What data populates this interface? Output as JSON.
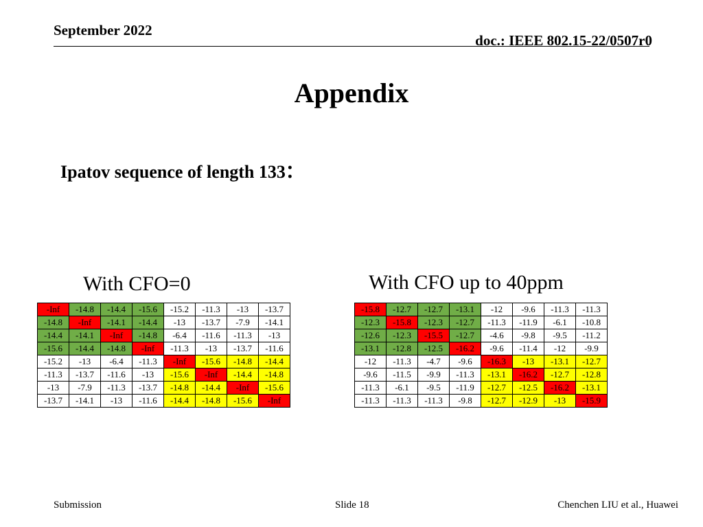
{
  "header": {
    "date": "September 2022",
    "doc": "doc.: IEEE 802.15-22/0507r0"
  },
  "title": "Appendix",
  "subtitle": "Ipatov sequence of length 133：",
  "left_table": {
    "caption": "With CFO=0",
    "rows": [
      [
        "-Inf",
        "-14.8",
        "-14.4",
        "-15.6",
        "-15.2",
        "-11.3",
        "-13",
        "-13.7"
      ],
      [
        "-14.8",
        "-Inf",
        "-14.1",
        "-14.4",
        "-13",
        "-13.7",
        "-7.9",
        "-14.1"
      ],
      [
        "-14.4",
        "-14.1",
        "-Inf",
        "-14.8",
        "-6.4",
        "-11.6",
        "-11.3",
        "-13"
      ],
      [
        "-15.6",
        "-14.4",
        "-14.8",
        "-Inf",
        "-11.3",
        "-13",
        "-13.7",
        "-11.6"
      ],
      [
        "-15.2",
        "-13",
        "-6.4",
        "-11.3",
        "-Inf",
        "-15.6",
        "-14.8",
        "-14.4"
      ],
      [
        "-11.3",
        "-13.7",
        "-11.6",
        "-13",
        "-15.6",
        "-Inf",
        "-14.4",
        "-14.8"
      ],
      [
        "-13",
        "-7.9",
        "-11.3",
        "-13.7",
        "-14.8",
        "-14.4",
        "-Inf",
        "-15.6"
      ],
      [
        "-13.7",
        "-14.1",
        "-13",
        "-11.6",
        "-14.4",
        "-14.8",
        "-15.6",
        "-Inf"
      ]
    ],
    "colors": [
      [
        "r",
        "g",
        "g",
        "g",
        "w",
        "w",
        "w",
        "w"
      ],
      [
        "g",
        "r",
        "g",
        "g",
        "w",
        "w",
        "w",
        "w"
      ],
      [
        "g",
        "g",
        "r",
        "g",
        "w",
        "w",
        "w",
        "w"
      ],
      [
        "g",
        "g",
        "g",
        "r",
        "w",
        "w",
        "w",
        "w"
      ],
      [
        "w",
        "w",
        "w",
        "w",
        "r",
        "y",
        "y",
        "y"
      ],
      [
        "w",
        "w",
        "w",
        "w",
        "y",
        "r",
        "y",
        "y"
      ],
      [
        "w",
        "w",
        "w",
        "w",
        "y",
        "y",
        "r",
        "y"
      ],
      [
        "w",
        "w",
        "w",
        "w",
        "y",
        "y",
        "y",
        "r"
      ]
    ]
  },
  "right_table": {
    "caption": "With CFO up to 40ppm",
    "rows": [
      [
        "-15.8",
        "-12.7",
        "-12.7",
        "-13.1",
        "-12",
        "-9.6",
        "-11.3",
        "-11.3"
      ],
      [
        "-12.3",
        "-15.8",
        "-12.3",
        "-12.7",
        "-11.3",
        "-11.9",
        "-6.1",
        "-10.8"
      ],
      [
        "-12.6",
        "-12.3",
        "-15.5",
        "-12.7",
        "-4.6",
        "-9.8",
        "-9.5",
        "-11.2"
      ],
      [
        "-13.1",
        "-12.8",
        "-12.5",
        "-16.2",
        "-9.6",
        "-11.4",
        "-12",
        "-9.9"
      ],
      [
        "-12",
        "-11.3",
        "-4.7",
        "-9.6",
        "-16.3",
        "-13",
        "-13.1",
        "-12.7"
      ],
      [
        "-9.6",
        "-11.5",
        "-9.9",
        "-11.3",
        "-13.1",
        "-16.2",
        "-12.7",
        "-12.8"
      ],
      [
        "-11.3",
        "-6.1",
        "-9.5",
        "-11.9",
        "-12.7",
        "-12.5",
        "-16.2",
        "-13.1"
      ],
      [
        "-11.3",
        "-11.3",
        "-11.3",
        "-9.8",
        "-12.7",
        "-12.9",
        "-13",
        "-15.9"
      ]
    ],
    "colors": [
      [
        "r",
        "g",
        "g",
        "g",
        "w",
        "w",
        "w",
        "w"
      ],
      [
        "g",
        "r",
        "g",
        "g",
        "w",
        "w",
        "w",
        "w"
      ],
      [
        "g",
        "g",
        "r",
        "g",
        "w",
        "w",
        "w",
        "w"
      ],
      [
        "g",
        "g",
        "g",
        "r",
        "w",
        "w",
        "w",
        "w"
      ],
      [
        "w",
        "w",
        "w",
        "w",
        "r",
        "y",
        "y",
        "y"
      ],
      [
        "w",
        "w",
        "w",
        "w",
        "y",
        "r",
        "y",
        "y"
      ],
      [
        "w",
        "w",
        "w",
        "w",
        "y",
        "y",
        "r",
        "y"
      ],
      [
        "w",
        "w",
        "w",
        "w",
        "y",
        "y",
        "y",
        "r"
      ]
    ]
  },
  "palette": {
    "r": "#ff0000",
    "g": "#70ad47",
    "y": "#ffff00",
    "w": "#ffffff"
  },
  "footer": {
    "left": "Submission",
    "center": "Slide 18",
    "right": "Chenchen LIU et al., Huawei"
  }
}
